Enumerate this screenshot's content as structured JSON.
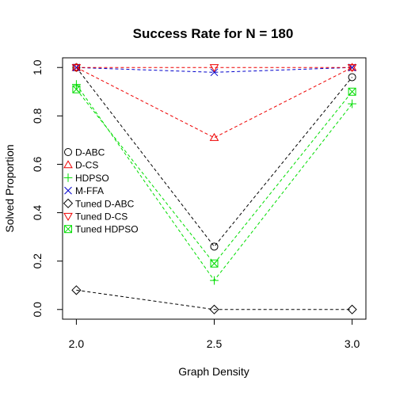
{
  "chart_data": {
    "type": "line",
    "title": "Success Rate for N = 180",
    "xlabel": "Graph Density",
    "ylabel": "Solved Proportion",
    "x": [
      2.0,
      2.5,
      3.0
    ],
    "xticks": [
      "2.0",
      "2.5",
      "3.0"
    ],
    "yticks": [
      "0.0",
      "0.2",
      "0.4",
      "0.6",
      "0.8",
      "1.0"
    ],
    "xlim": [
      1.95,
      3.05
    ],
    "ylim": [
      -0.04,
      1.04
    ],
    "grid": false,
    "legend_position": "center-left",
    "series": [
      {
        "name": "D-ABC",
        "values": [
          1.0,
          0.26,
          0.96
        ],
        "color": "#000000",
        "marker": "circle"
      },
      {
        "name": "D-CS",
        "values": [
          1.0,
          0.71,
          1.0
        ],
        "color": "#ee0000",
        "marker": "triangle-up"
      },
      {
        "name": "HDPSO",
        "values": [
          0.93,
          0.12,
          0.85
        ],
        "color": "#00dd00",
        "marker": "plus"
      },
      {
        "name": "M-FFA",
        "values": [
          1.0,
          0.98,
          1.0
        ],
        "color": "#0000cc",
        "marker": "cross"
      },
      {
        "name": "Tuned D-ABC",
        "values": [
          0.08,
          0.0,
          0.0
        ],
        "color": "#000000",
        "marker": "diamond"
      },
      {
        "name": "Tuned D-CS",
        "values": [
          1.0,
          1.0,
          1.0
        ],
        "color": "#ee0000",
        "marker": "triangle-down"
      },
      {
        "name": "Tuned HDPSO",
        "values": [
          0.91,
          0.19,
          0.9
        ],
        "color": "#00dd00",
        "marker": "boxed-cross"
      }
    ]
  }
}
